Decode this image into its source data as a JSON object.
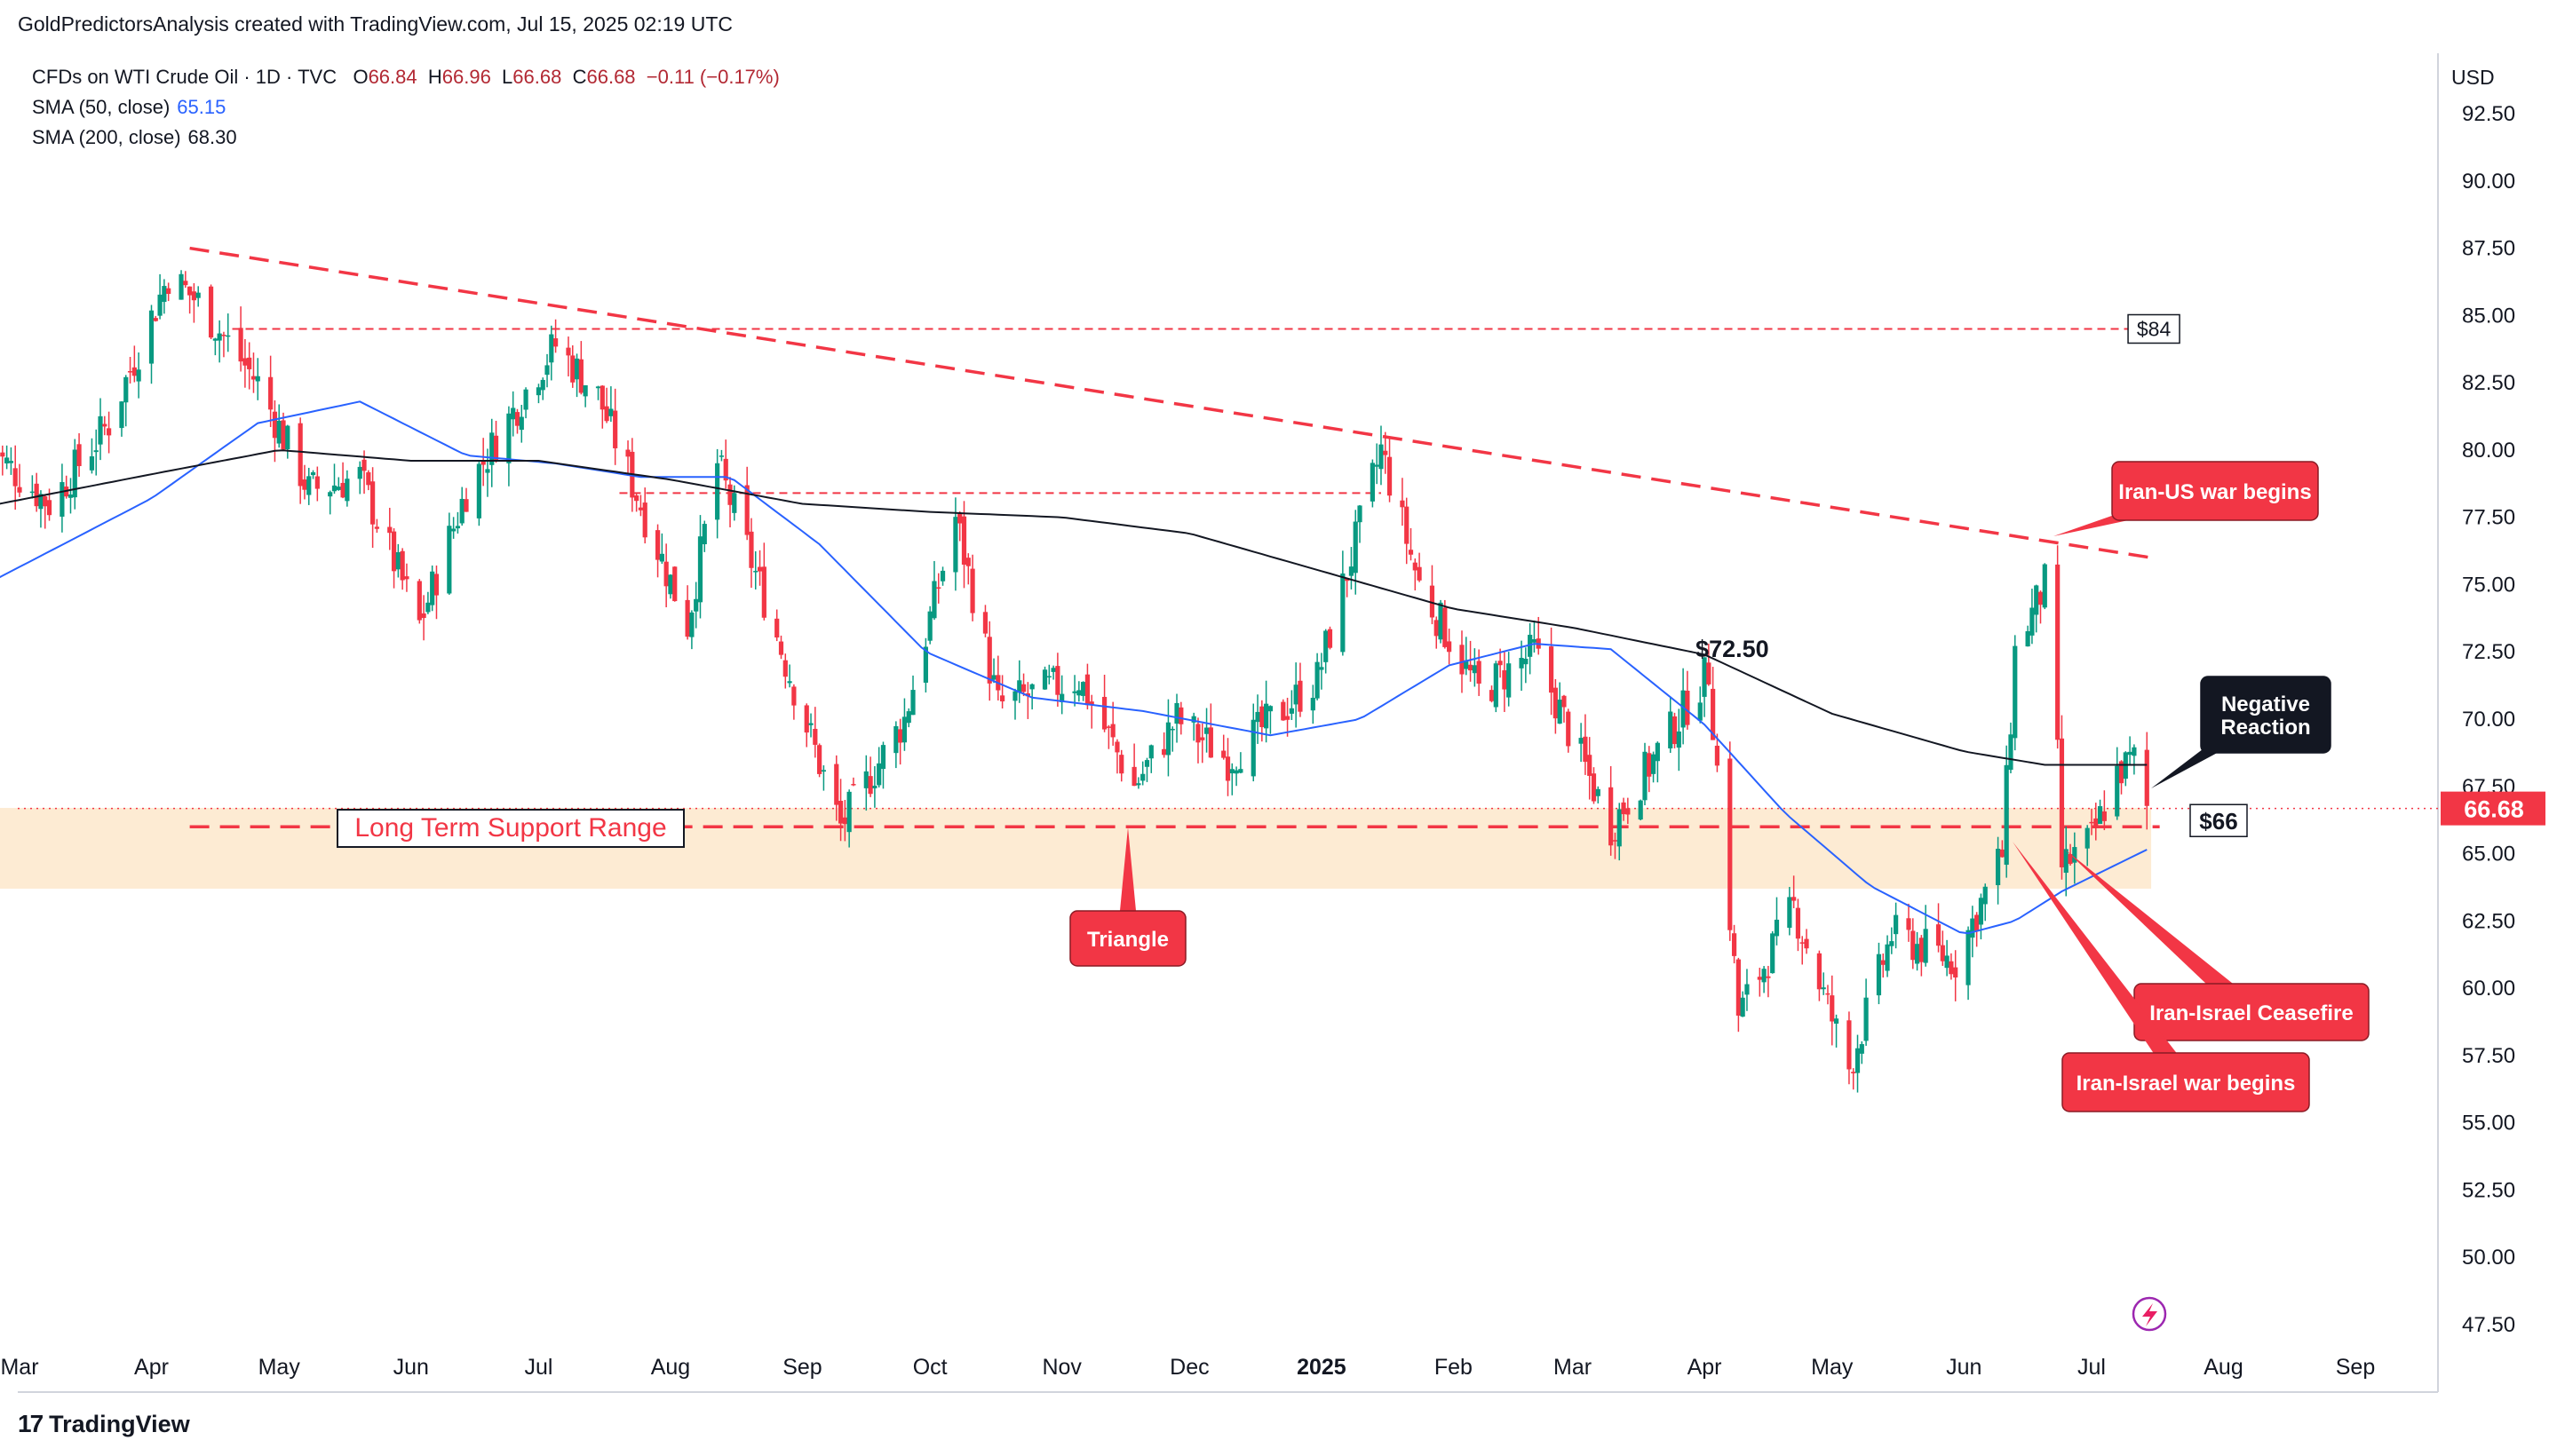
{
  "header": {
    "credit": "GoldPredictorsAnalysis created with TradingView.com, Jul 15, 2025 02:19 UTC"
  },
  "legend": {
    "symbol": "CFDs on WTI Crude Oil · 1D · TVC",
    "o_label": "O",
    "o_value": "66.84",
    "h_label": "H",
    "h_value": "66.96",
    "l_label": "L",
    "l_value": "66.68",
    "c_label": "C",
    "c_value": "66.68",
    "change": "−0.11 (−0.17%)",
    "sma50_label": "SMA (50, close)",
    "sma50_value": "65.15",
    "sma200_label": "SMA (200, close)",
    "sma200_value": "68.30"
  },
  "currency": "USD",
  "footer": {
    "brand": "TradingView",
    "logo": "17"
  },
  "colors": {
    "up": "#089981",
    "down": "#f23645",
    "sma50": "#2962ff",
    "sma200": "#131722",
    "annotation_red": "#f23645",
    "annotation_dark": "#131722",
    "support_band": "#fdebd3"
  },
  "chart_data": {
    "type": "candlestick",
    "title": "CFDs on WTI Crude Oil",
    "ylim": [
      47.5,
      93.5
    ],
    "y_ticks": [
      "92.50",
      "90.00",
      "87.50",
      "85.00",
      "82.50",
      "80.00",
      "77.50",
      "75.00",
      "72.50",
      "70.00",
      "67.50",
      "65.00",
      "62.50",
      "60.00",
      "57.50",
      "55.00",
      "52.50",
      "50.00",
      "47.50"
    ],
    "x_labels": [
      {
        "text": "Mar",
        "date": "2024-03-01"
      },
      {
        "text": "Apr",
        "date": "2024-04-01"
      },
      {
        "text": "May",
        "date": "2024-05-01"
      },
      {
        "text": "Jun",
        "date": "2024-06-01"
      },
      {
        "text": "Jul",
        "date": "2024-07-01"
      },
      {
        "text": "Aug",
        "date": "2024-08-01"
      },
      {
        "text": "Sep",
        "date": "2024-09-01"
      },
      {
        "text": "Oct",
        "date": "2024-10-01"
      },
      {
        "text": "Nov",
        "date": "2024-11-01"
      },
      {
        "text": "Dec",
        "date": "2024-12-01"
      },
      {
        "text": "2025",
        "date": "2025-01-01",
        "bold": true
      },
      {
        "text": "Feb",
        "date": "2025-02-01"
      },
      {
        "text": "Mar",
        "date": "2025-03-01"
      },
      {
        "text": "Apr",
        "date": "2025-04-01"
      },
      {
        "text": "May",
        "date": "2025-05-01"
      },
      {
        "text": "Jun",
        "date": "2025-06-01"
      },
      {
        "text": "Jul",
        "date": "2025-07-01"
      },
      {
        "text": "Aug",
        "date": "2025-08-01"
      },
      {
        "text": "Sep",
        "date": "2025-09-01"
      }
    ],
    "price_path": [
      [
        "2024-02-22",
        80.2
      ],
      [
        "2024-03-08",
        78.0
      ],
      [
        "2024-03-22",
        81.0
      ],
      [
        "2024-04-05",
        86.5
      ],
      [
        "2024-04-12",
        85.5
      ],
      [
        "2024-04-26",
        82.5
      ],
      [
        "2024-05-08",
        78.5
      ],
      [
        "2024-05-20",
        79.0
      ],
      [
        "2024-06-03",
        73.5
      ],
      [
        "2024-06-14",
        78.5
      ],
      [
        "2024-07-01",
        83.0
      ],
      [
        "2024-07-05",
        83.9
      ],
      [
        "2024-07-15",
        82.0
      ],
      [
        "2024-08-05",
        73.5
      ],
      [
        "2024-08-12",
        79.5
      ],
      [
        "2024-08-23",
        74.5
      ],
      [
        "2024-09-10",
        66.0
      ],
      [
        "2024-09-25",
        70.0
      ],
      [
        "2024-10-07",
        77.5
      ],
      [
        "2024-10-17",
        70.5
      ],
      [
        "2024-11-05",
        71.5
      ],
      [
        "2024-11-18",
        67.5
      ],
      [
        "2024-11-28",
        70.0
      ],
      [
        "2024-12-10",
        68.5
      ],
      [
        "2024-12-31",
        71.5
      ],
      [
        "2025-01-15",
        80.0
      ],
      [
        "2025-01-24",
        75.0
      ],
      [
        "2025-02-07",
        71.0
      ],
      [
        "2025-02-20",
        72.5
      ],
      [
        "2025-03-10",
        66.0
      ],
      [
        "2025-04-02",
        71.8
      ],
      [
        "2025-04-09",
        59.0
      ],
      [
        "2025-04-22",
        63.0
      ],
      [
        "2025-05-05",
        57.0
      ],
      [
        "2025-05-15",
        62.0
      ],
      [
        "2025-05-30",
        61.0
      ],
      [
        "2025-06-10",
        65.0
      ],
      [
        "2025-06-13",
        72.5
      ],
      [
        "2025-06-20",
        75.0
      ],
      [
        "2025-06-23",
        68.5
      ],
      [
        "2025-06-24",
        64.5
      ],
      [
        "2025-07-01",
        65.5
      ],
      [
        "2025-07-07",
        68.0
      ],
      [
        "2025-07-11",
        68.5
      ],
      [
        "2025-07-14",
        66.68
      ]
    ],
    "sma50_path": [
      [
        "2024-02-22",
        75.0
      ],
      [
        "2024-04-01",
        78.2
      ],
      [
        "2024-04-26",
        81.0
      ],
      [
        "2024-05-20",
        81.8
      ],
      [
        "2024-06-14",
        79.8
      ],
      [
        "2024-07-05",
        79.5
      ],
      [
        "2024-07-25",
        79.0
      ],
      [
        "2024-08-15",
        79.0
      ],
      [
        "2024-09-05",
        76.5
      ],
      [
        "2024-09-30",
        72.5
      ],
      [
        "2024-10-25",
        70.8
      ],
      [
        "2024-11-20",
        70.3
      ],
      [
        "2024-12-20",
        69.4
      ],
      [
        "2025-01-10",
        70.0
      ],
      [
        "2025-01-31",
        72.0
      ],
      [
        "2025-02-20",
        72.8
      ],
      [
        "2025-03-10",
        72.6
      ],
      [
        "2025-04-01",
        69.8
      ],
      [
        "2025-04-20",
        66.5
      ],
      [
        "2025-05-10",
        63.8
      ],
      [
        "2025-06-01",
        62.0
      ],
      [
        "2025-06-13",
        62.5
      ],
      [
        "2025-06-24",
        63.6
      ],
      [
        "2025-07-14",
        65.15
      ]
    ],
    "sma200_path": [
      [
        "2024-02-22",
        77.9
      ],
      [
        "2024-04-01",
        79.1
      ],
      [
        "2024-05-01",
        80.0
      ],
      [
        "2024-06-01",
        79.6
      ],
      [
        "2024-07-01",
        79.6
      ],
      [
        "2024-08-01",
        78.9
      ],
      [
        "2024-09-01",
        78.0
      ],
      [
        "2024-10-01",
        77.7
      ],
      [
        "2024-11-01",
        77.5
      ],
      [
        "2024-12-01",
        76.9
      ],
      [
        "2025-01-01",
        75.5
      ],
      [
        "2025-02-01",
        74.1
      ],
      [
        "2025-03-01",
        73.4
      ],
      [
        "2025-04-01",
        72.4
      ],
      [
        "2025-05-01",
        70.2
      ],
      [
        "2025-06-01",
        68.8
      ],
      [
        "2025-06-20",
        68.3
      ],
      [
        "2025-07-14",
        68.3
      ]
    ],
    "resistance_trendline": [
      [
        "2024-04-10",
        87.5
      ],
      [
        "2025-07-15",
        76.0
      ]
    ],
    "level_84": {
      "value": 84.5,
      "from": "2024-04-20",
      "to": "2025-07-15",
      "label": "$84"
    },
    "level_784": {
      "value": 78.4,
      "from": "2024-07-20",
      "to": "2025-01-15"
    },
    "support_line": {
      "value": 66.0,
      "from": "2024-04-10",
      "to": "2025-07-17",
      "label": "$66"
    },
    "support_band": {
      "top": 66.7,
      "bottom": 63.7,
      "from": "2024-02-22",
      "to": "2025-07-15",
      "label": "Long Term Support Range"
    },
    "last_price": {
      "value": 66.68,
      "label": "66.68"
    },
    "label_7250": {
      "text": "$72.50",
      "date": "2025-04-01",
      "value": 72.5
    },
    "annotations": [
      {
        "text": "Iran-US war begins",
        "style": "red"
      },
      {
        "text": "Negative\nReaction",
        "style": "dark"
      },
      {
        "text": "Triangle",
        "style": "red"
      },
      {
        "text": "Iran-Israel Ceasefire",
        "style": "red"
      },
      {
        "text": "Iran-Israel war begins",
        "style": "red"
      }
    ]
  }
}
